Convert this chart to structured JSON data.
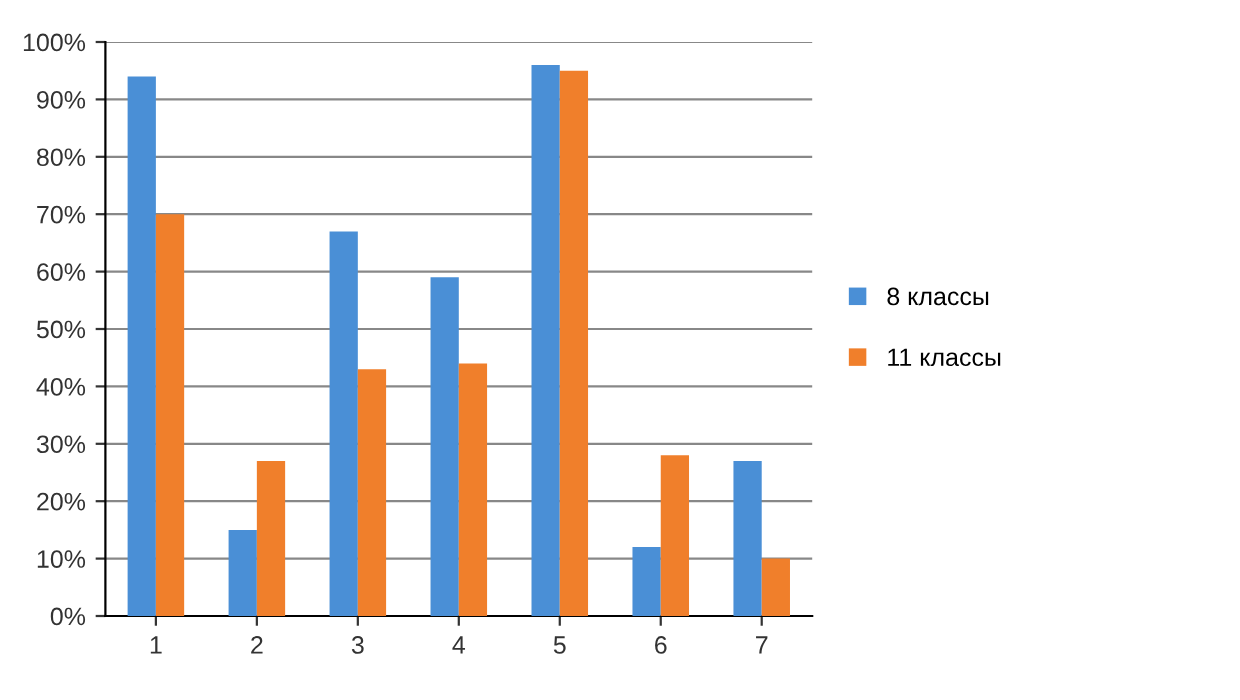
{
  "chart_data": {
    "type": "bar",
    "categories": [
      "1",
      "2",
      "3",
      "4",
      "5",
      "6",
      "7"
    ],
    "series": [
      {
        "name": "8 классы",
        "color": "#4a8fd6",
        "values": [
          94,
          15,
          67,
          59,
          96,
          12,
          27
        ]
      },
      {
        "name": "11 классы",
        "color": "#f07f2b",
        "values": [
          70,
          27,
          43,
          44,
          95,
          28,
          10
        ]
      }
    ],
    "ylim": [
      0,
      100
    ],
    "yticks": [
      {
        "value": 0,
        "label": "0%"
      },
      {
        "value": 10,
        "label": "10%"
      },
      {
        "value": 20,
        "label": "20%"
      },
      {
        "value": 30,
        "label": "30%"
      },
      {
        "value": 40,
        "label": "40%"
      },
      {
        "value": 50,
        "label": "50%"
      },
      {
        "value": 60,
        "label": "60%"
      },
      {
        "value": 70,
        "label": "70%"
      },
      {
        "value": 80,
        "label": "80%"
      },
      {
        "value": 90,
        "label": "90%"
      },
      {
        "value": 100,
        "label": "100%"
      }
    ],
    "grid": "y",
    "legend": "right"
  }
}
